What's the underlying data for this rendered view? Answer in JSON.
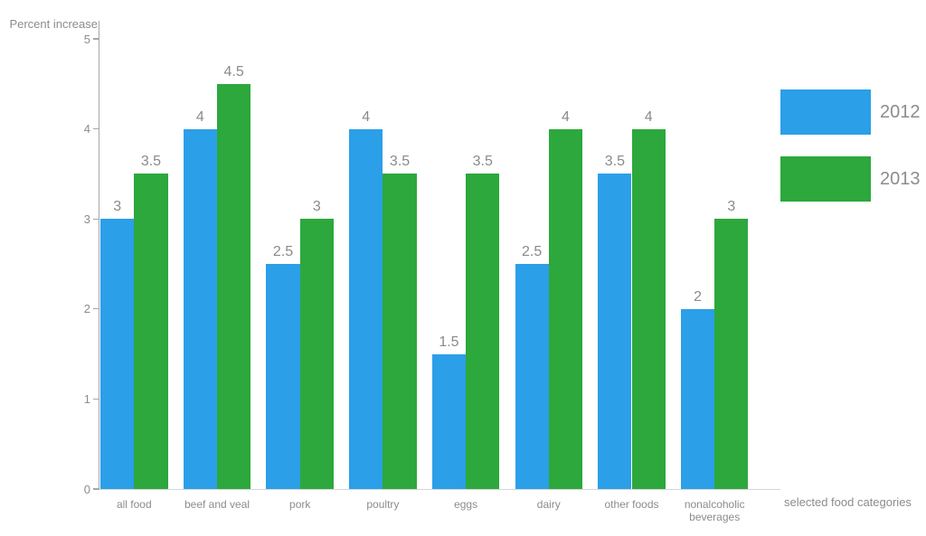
{
  "chart_data": {
    "type": "bar",
    "title": "",
    "ylabel": "Percent increase",
    "xlabel": "selected food categories",
    "categories": [
      "all food",
      "beef and veal",
      "pork",
      "poultry",
      "eggs",
      "dairy",
      "other foods",
      "nonalcoholic beverages"
    ],
    "series": [
      {
        "name": "2012",
        "color": "#2b9fe8",
        "values": [
          3,
          4,
          2.5,
          4,
          1.5,
          2.5,
          3.5,
          2
        ]
      },
      {
        "name": "2013",
        "color": "#2ca83c",
        "values": [
          3.5,
          4.5,
          3,
          3.5,
          3.5,
          4,
          4,
          3
        ]
      }
    ],
    "ylim": [
      0,
      5
    ],
    "yticks": [
      0,
      1,
      2,
      3,
      4,
      5
    ],
    "grid": false,
    "legend_position": "right",
    "data_labels": true
  },
  "colors": {
    "series_2012": "#2b9fe8",
    "series_2013": "#2ca83c",
    "text_gray": "#8c8c8c",
    "axis_line": "#a6a6a6",
    "baseline": "#d6d6d6",
    "background": "#ffffff"
  }
}
